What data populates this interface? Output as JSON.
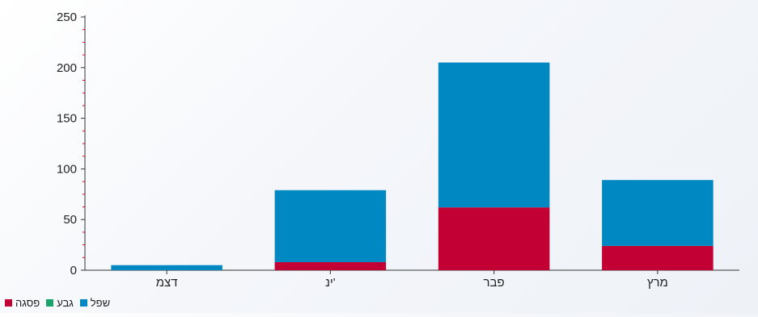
{
  "chart_data": {
    "type": "bar",
    "stacked": true,
    "categories": [
      "דצמ",
      "ינ'",
      "פבר",
      "מרץ"
    ],
    "series": [
      {
        "name": "פסגה",
        "color": "#c30033",
        "values": [
          0,
          8,
          62,
          24
        ]
      },
      {
        "name": "גבע",
        "color": "#1aa36a",
        "values": [
          0,
          0,
          0,
          0
        ]
      },
      {
        "name": "שפל",
        "color": "#0088c2",
        "values": [
          5,
          71,
          143,
          65
        ]
      }
    ],
    "legend_order": [
      "שפל",
      "גבע",
      "פסגה"
    ],
    "ylim": [
      0,
      250
    ],
    "yticks": [
      0,
      50,
      100,
      150,
      200,
      250
    ],
    "minor_tick_color": "#e0002b",
    "grid": false,
    "legend_position": "bottom-left",
    "title": "",
    "xlabel": "",
    "ylabel": ""
  }
}
